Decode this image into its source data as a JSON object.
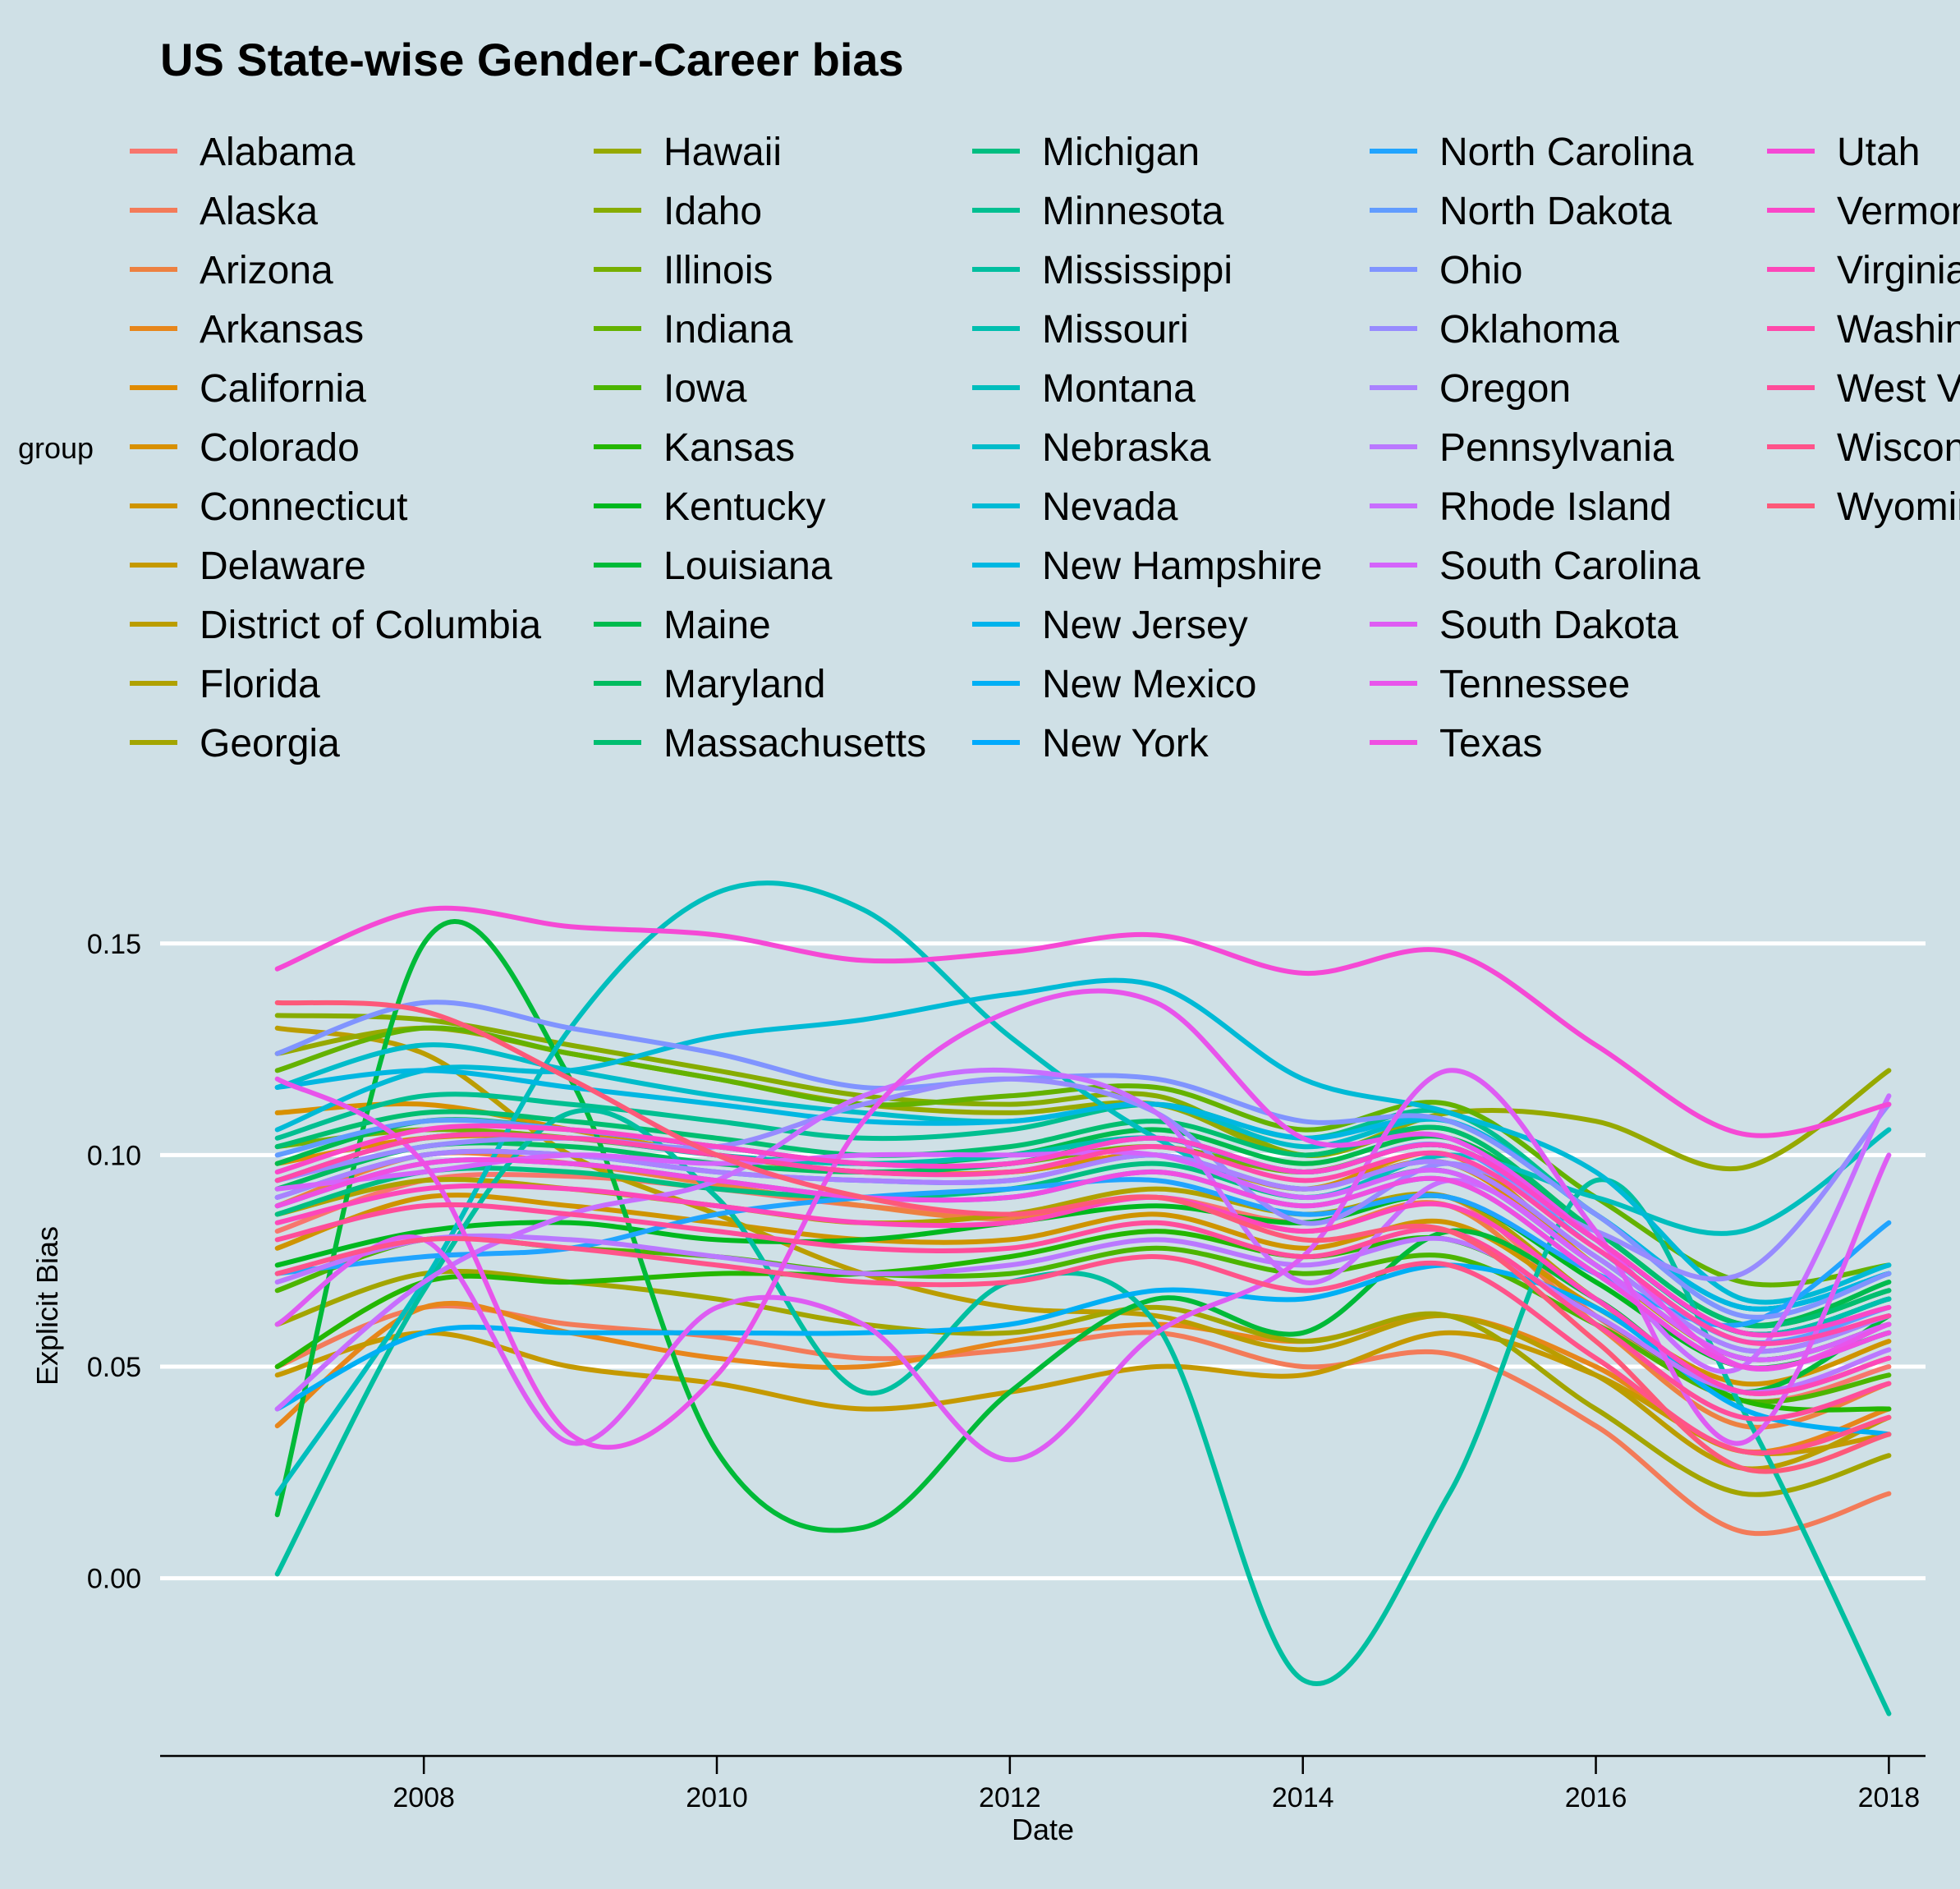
{
  "chart_data": {
    "type": "line",
    "title": "US State-wise Gender-Career bias",
    "xlabel": "Date",
    "ylabel": "Explicit Bias",
    "legend_title": "group",
    "legend_position": "top",
    "xlim": [
      2006.2,
      2018.25
    ],
    "ylim": [
      -0.042,
      0.175
    ],
    "x_ticks": [
      2008,
      2010,
      2012,
      2014,
      2016,
      2018
    ],
    "y_ticks": [
      0.0,
      0.05,
      0.1,
      0.15
    ],
    "y_tick_labels": [
      "0.00",
      "0.05",
      "0.10",
      "0.15"
    ],
    "grid": "horizontal",
    "x": [
      2007,
      2008,
      2009,
      2010,
      2011,
      2012,
      2013,
      2014,
      2015,
      2016,
      2017,
      2018
    ],
    "series": [
      {
        "name": "Alabama",
        "color": "#F8766D",
        "values": [
          0.082,
          0.094,
          0.095,
          0.092,
          0.088,
          0.086,
          0.09,
          0.084,
          0.09,
          0.062,
          0.042,
          0.05
        ]
      },
      {
        "name": "Alaska",
        "color": "#F37B59",
        "values": [
          0.05,
          0.064,
          0.06,
          0.057,
          0.052,
          0.054,
          0.058,
          0.05,
          0.053,
          0.036,
          0.011,
          0.02
        ]
      },
      {
        "name": "Arizona",
        "color": "#ED8141",
        "values": [
          0.088,
          0.1,
          0.098,
          0.093,
          0.088,
          0.085,
          0.09,
          0.082,
          0.088,
          0.06,
          0.036,
          0.046
        ]
      },
      {
        "name": "Arkansas",
        "color": "#E7861B",
        "values": [
          0.036,
          0.064,
          0.058,
          0.052,
          0.05,
          0.056,
          0.06,
          0.056,
          0.062,
          0.05,
          0.03,
          0.04
        ]
      },
      {
        "name": "California",
        "color": "#E08B00",
        "values": [
          0.098,
          0.104,
          0.104,
          0.1,
          0.096,
          0.096,
          0.1,
          0.092,
          0.098,
          0.074,
          0.052,
          0.06
        ]
      },
      {
        "name": "Colorado",
        "color": "#D89000",
        "values": [
          0.11,
          0.112,
          0.106,
          0.1,
          0.096,
          0.096,
          0.1,
          0.092,
          0.1,
          0.074,
          0.052,
          0.06
        ]
      },
      {
        "name": "Connecticut",
        "color": "#CF9400",
        "values": [
          0.078,
          0.09,
          0.088,
          0.084,
          0.08,
          0.08,
          0.086,
          0.078,
          0.084,
          0.064,
          0.046,
          0.056
        ]
      },
      {
        "name": "Delaware",
        "color": "#C59900",
        "values": [
          0.048,
          0.058,
          0.05,
          0.046,
          0.04,
          0.044,
          0.05,
          0.048,
          0.058,
          0.048,
          0.03,
          0.034
        ]
      },
      {
        "name": "District of Columbia",
        "color": "#BB9D00",
        "values": [
          0.13,
          0.124,
          0.1,
          0.086,
          0.072,
          0.064,
          0.062,
          0.054,
          0.062,
          0.048,
          0.026,
          0.038
        ]
      },
      {
        "name": "Florida",
        "color": "#B0A100",
        "values": [
          0.086,
          0.094,
          0.092,
          0.088,
          0.084,
          0.086,
          0.092,
          0.086,
          0.09,
          0.066,
          0.044,
          0.052
        ]
      },
      {
        "name": "Georgia",
        "color": "#A3A500",
        "values": [
          0.06,
          0.072,
          0.07,
          0.066,
          0.06,
          0.058,
          0.064,
          0.056,
          0.062,
          0.04,
          0.02,
          0.029
        ]
      },
      {
        "name": "Hawaii",
        "color": "#96A900",
        "values": [
          0.124,
          0.13,
          0.124,
          0.118,
          0.112,
          0.11,
          0.112,
          0.1,
          0.11,
          0.108,
          0.097,
          0.12
        ]
      },
      {
        "name": "Idaho",
        "color": "#87AC00",
        "values": [
          0.133,
          0.132,
          0.126,
          0.12,
          0.114,
          0.112,
          0.114,
          0.1,
          0.106,
          0.082,
          0.06,
          0.068
        ]
      },
      {
        "name": "Illinois",
        "color": "#77AF00",
        "values": [
          0.102,
          0.106,
          0.104,
          0.1,
          0.096,
          0.098,
          0.102,
          0.096,
          0.102,
          0.08,
          0.058,
          0.066
        ]
      },
      {
        "name": "Indiana",
        "color": "#64B200",
        "values": [
          0.12,
          0.13,
          0.124,
          0.118,
          0.112,
          0.114,
          0.116,
          0.106,
          0.112,
          0.09,
          0.07,
          0.074
        ]
      },
      {
        "name": "Iowa",
        "color": "#4CB500",
        "values": [
          0.068,
          0.08,
          0.078,
          0.076,
          0.072,
          0.072,
          0.078,
          0.072,
          0.076,
          0.06,
          0.042,
          0.048
        ]
      },
      {
        "name": "Kansas",
        "color": "#24B700",
        "values": [
          0.05,
          0.07,
          0.07,
          0.072,
          0.072,
          0.076,
          0.082,
          0.076,
          0.08,
          0.062,
          0.042,
          0.04
        ]
      },
      {
        "name": "Kentucky",
        "color": "#00B81F",
        "values": [
          0.074,
          0.082,
          0.084,
          0.08,
          0.08,
          0.084,
          0.088,
          0.084,
          0.09,
          0.07,
          0.05,
          0.058
        ]
      },
      {
        "name": "Louisiana",
        "color": "#00BA38",
        "values": [
          0.015,
          0.15,
          0.118,
          0.03,
          0.012,
          0.044,
          0.066,
          0.058,
          0.082,
          0.066,
          0.044,
          0.062
        ]
      },
      {
        "name": "Maine",
        "color": "#00BB4E",
        "values": [
          0.098,
          0.108,
          0.106,
          0.102,
          0.098,
          0.1,
          0.106,
          0.098,
          0.104,
          0.082,
          0.06,
          0.07
        ]
      },
      {
        "name": "Maryland",
        "color": "#00BC5F",
        "values": [
          0.092,
          0.102,
          0.102,
          0.098,
          0.096,
          0.098,
          0.104,
          0.096,
          0.102,
          0.08,
          0.058,
          0.066
        ]
      },
      {
        "name": "Massachusetts",
        "color": "#00BE70",
        "values": [
          0.102,
          0.11,
          0.108,
          0.104,
          0.1,
          0.102,
          0.108,
          0.1,
          0.106,
          0.082,
          0.06,
          0.068
        ]
      },
      {
        "name": "Michigan",
        "color": "#00BE81",
        "values": [
          0.086,
          0.096,
          0.096,
          0.092,
          0.09,
          0.092,
          0.098,
          0.09,
          0.096,
          0.074,
          0.052,
          0.06
        ]
      },
      {
        "name": "Minnesota",
        "color": "#00BF91",
        "values": [
          0.104,
          0.114,
          0.112,
          0.108,
          0.104,
          0.106,
          0.112,
          0.104,
          0.11,
          0.086,
          0.064,
          0.072
        ]
      },
      {
        "name": "Mississippi",
        "color": "#00BFA0",
        "values": [
          0.001,
          0.068,
          0.11,
          0.09,
          0.044,
          0.07,
          0.06,
          -0.024,
          0.02,
          0.094,
          0.04,
          -0.032
        ]
      },
      {
        "name": "Missouri",
        "color": "#00BFAF",
        "values": [
          0.094,
          0.104,
          0.104,
          0.1,
          0.098,
          0.1,
          0.104,
          0.096,
          0.102,
          0.08,
          0.058,
          0.066
        ]
      },
      {
        "name": "Montana",
        "color": "#00BEBD",
        "values": [
          0.02,
          0.07,
          0.13,
          0.162,
          0.158,
          0.128,
          0.104,
          0.09,
          0.1,
          0.09,
          0.082,
          0.106
        ]
      },
      {
        "name": "Nebraska",
        "color": "#00BCCA",
        "values": [
          0.116,
          0.126,
          0.12,
          0.114,
          0.11,
          0.108,
          0.112,
          0.102,
          0.108,
          0.086,
          0.064,
          0.072
        ]
      },
      {
        "name": "Nevada",
        "color": "#00BAD6",
        "values": [
          0.106,
          0.12,
          0.12,
          0.128,
          0.132,
          0.138,
          0.14,
          0.118,
          0.11,
          0.096,
          0.066,
          0.074
        ]
      },
      {
        "name": "New Hampshire",
        "color": "#00B7E2",
        "values": [
          0.116,
          0.12,
          0.116,
          0.112,
          0.108,
          0.108,
          0.112,
          0.104,
          0.108,
          0.086,
          0.064,
          0.072
        ]
      },
      {
        "name": "New Jersey",
        "color": "#00B3EC",
        "values": [
          0.088,
          0.098,
          0.098,
          0.094,
          0.09,
          0.09,
          0.096,
          0.088,
          0.094,
          0.072,
          0.05,
          0.058
        ]
      },
      {
        "name": "New Mexico",
        "color": "#00AFF5",
        "values": [
          0.04,
          0.058,
          0.058,
          0.058,
          0.058,
          0.06,
          0.068,
          0.066,
          0.074,
          0.064,
          0.04,
          0.034
        ]
      },
      {
        "name": "New York",
        "color": "#00AAFD",
        "values": [
          0.09,
          0.1,
          0.1,
          0.096,
          0.094,
          0.094,
          0.1,
          0.092,
          0.098,
          0.076,
          0.054,
          0.062
        ]
      },
      {
        "name": "North Carolina",
        "color": "#21A4FF",
        "values": [
          0.072,
          0.076,
          0.078,
          0.086,
          0.09,
          0.092,
          0.094,
          0.086,
          0.09,
          0.072,
          0.06,
          0.084
        ]
      },
      {
        "name": "North Dakota",
        "color": "#619CFF",
        "values": [
          0.1,
          0.108,
          0.106,
          0.102,
          0.098,
          0.098,
          0.104,
          0.096,
          0.102,
          0.078,
          0.056,
          0.064
        ]
      },
      {
        "name": "Ohio",
        "color": "#8094FF",
        "values": [
          0.124,
          0.136,
          0.13,
          0.124,
          0.116,
          0.118,
          0.118,
          0.108,
          0.108,
          0.086,
          0.062,
          0.072
        ]
      },
      {
        "name": "Oklahoma",
        "color": "#978BFF",
        "values": [
          0.094,
          0.102,
          0.104,
          0.102,
          0.112,
          0.118,
          0.11,
          0.084,
          0.098,
          0.082,
          0.072,
          0.112
        ]
      },
      {
        "name": "Oregon",
        "color": "#AA82FF",
        "values": [
          0.09,
          0.1,
          0.1,
          0.096,
          0.094,
          0.094,
          0.1,
          0.092,
          0.098,
          0.076,
          0.054,
          0.062
        ]
      },
      {
        "name": "Pennsylvania",
        "color": "#BA78FF",
        "values": [
          0.07,
          0.08,
          0.08,
          0.076,
          0.072,
          0.074,
          0.08,
          0.074,
          0.08,
          0.062,
          0.044,
          0.054
        ]
      },
      {
        "name": "Rhode Island",
        "color": "#C86EFF",
        "values": [
          0.04,
          0.07,
          0.086,
          0.094,
          0.114,
          0.12,
          0.11,
          0.07,
          0.094,
          0.074,
          0.05,
          0.114
        ]
      },
      {
        "name": "South Carolina",
        "color": "#D464FB",
        "values": [
          0.092,
          0.096,
          0.1,
          0.098,
          0.1,
          0.1,
          0.1,
          0.09,
          0.096,
          0.074,
          0.052,
          0.06
        ]
      },
      {
        "name": "South Dakota",
        "color": "#DE5CF3",
        "values": [
          0.06,
          0.08,
          0.032,
          0.064,
          0.06,
          0.028,
          0.058,
          0.076,
          0.12,
          0.082,
          0.032,
          0.1
        ]
      },
      {
        "name": "Tennessee",
        "color": "#E854EB",
        "values": [
          0.118,
          0.098,
          0.034,
          0.048,
          0.108,
          0.134,
          0.136,
          0.104,
          0.104,
          0.08,
          0.05,
          0.06
        ]
      },
      {
        "name": "Texas",
        "color": "#EF4EE1",
        "values": [
          0.088,
          0.098,
          0.098,
          0.094,
          0.09,
          0.09,
          0.096,
          0.088,
          0.094,
          0.072,
          0.05,
          0.058
        ]
      },
      {
        "name": "Utah",
        "color": "#F549D5",
        "values": [
          0.144,
          0.158,
          0.154,
          0.152,
          0.146,
          0.148,
          0.152,
          0.143,
          0.148,
          0.126,
          0.105,
          0.112
        ]
      },
      {
        "name": "Vermont",
        "color": "#FA47C8",
        "values": [
          0.096,
          0.106,
          0.106,
          0.102,
          0.098,
          0.098,
          0.104,
          0.096,
          0.102,
          0.08,
          0.058,
          0.064
        ]
      },
      {
        "name": "Virginia",
        "color": "#FD47B9",
        "values": [
          0.084,
          0.092,
          0.092,
          0.088,
          0.084,
          0.084,
          0.09,
          0.082,
          0.088,
          0.066,
          0.044,
          0.052
        ]
      },
      {
        "name": "Washington",
        "color": "#FF49AA",
        "values": [
          0.094,
          0.104,
          0.104,
          0.1,
          0.096,
          0.096,
          0.102,
          0.094,
          0.1,
          0.078,
          0.056,
          0.062
        ]
      },
      {
        "name": "West Virginia",
        "color": "#FF4D9A",
        "values": [
          0.08,
          0.088,
          0.086,
          0.082,
          0.078,
          0.078,
          0.084,
          0.076,
          0.082,
          0.06,
          0.038,
          0.046
        ]
      },
      {
        "name": "Wisconsin",
        "color": "#FF538A",
        "values": [
          0.072,
          0.08,
          0.078,
          0.074,
          0.07,
          0.07,
          0.076,
          0.068,
          0.074,
          0.052,
          0.03,
          0.038
        ]
      },
      {
        "name": "Wyoming",
        "color": "#FD5979",
        "values": [
          0.136,
          0.134,
          0.118,
          0.1,
          0.09,
          0.086,
          0.09,
          0.08,
          0.082,
          0.056,
          0.026,
          0.034
        ]
      }
    ]
  }
}
